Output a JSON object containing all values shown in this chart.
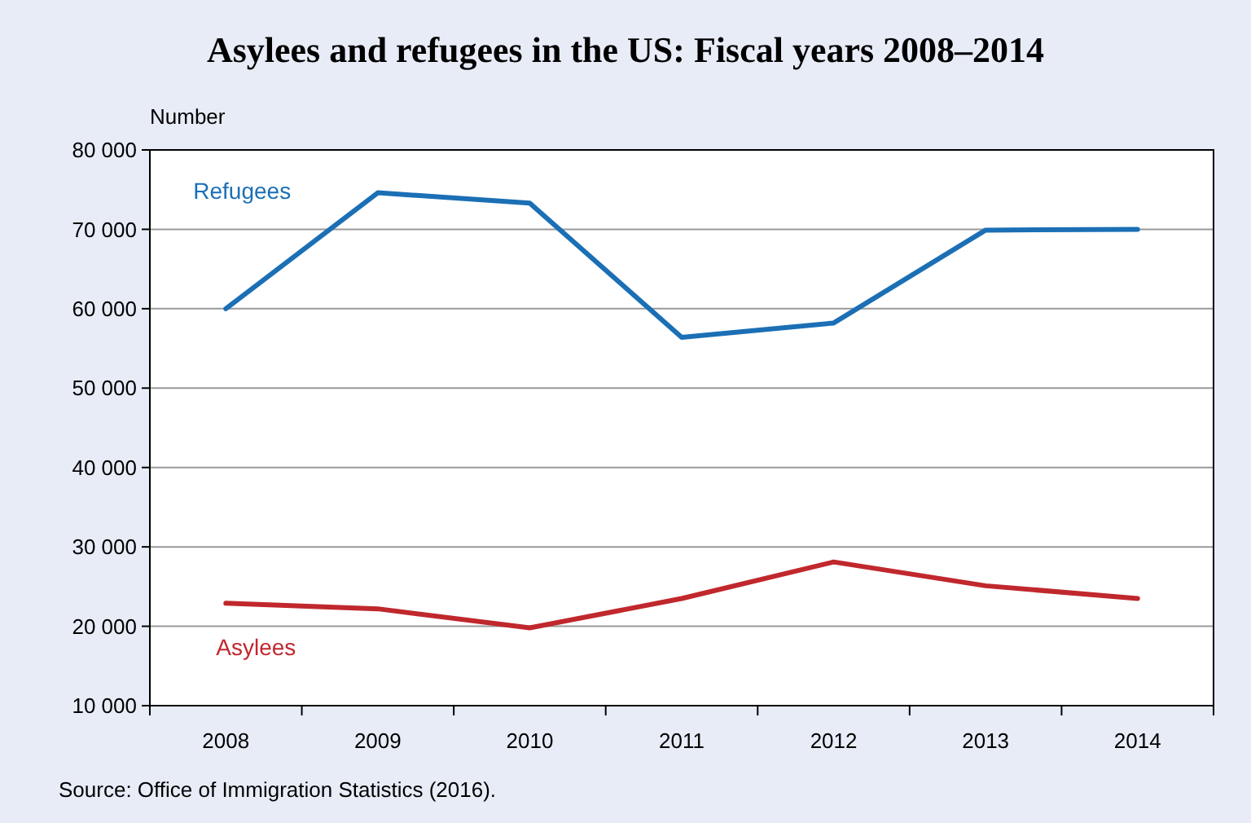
{
  "chart_data": {
    "type": "line",
    "title": "Asylees and refugees in the US: Fiscal years 2008–2014",
    "ylabel": "Number",
    "categories": [
      "2008",
      "2009",
      "2010",
      "2011",
      "2012",
      "2013",
      "2014"
    ],
    "series": [
      {
        "name": "Refugees",
        "color": "#1b6fb5",
        "values": [
          60000,
          74600,
          73300,
          56400,
          58200,
          69900,
          70000
        ]
      },
      {
        "name": "Asylees",
        "color": "#c0282d",
        "values": [
          22900,
          22200,
          19800,
          23500,
          28100,
          25100,
          23500
        ]
      }
    ],
    "ylim": [
      10000,
      80000
    ],
    "yticks": [
      {
        "value": 10000,
        "label": "10 000"
      },
      {
        "value": 20000,
        "label": "20 000"
      },
      {
        "value": 30000,
        "label": "30 000"
      },
      {
        "value": 40000,
        "label": "40 000"
      },
      {
        "value": 50000,
        "label": "50 000"
      },
      {
        "value": 60000,
        "label": "60 000"
      },
      {
        "value": 70000,
        "label": "70 000"
      },
      {
        "value": 80000,
        "label": "80 000"
      }
    ],
    "grid": "y",
    "marker": "none",
    "line_style": "solid",
    "annotations": [
      "Source: Office of Immigration Statistics (2016)."
    ]
  }
}
